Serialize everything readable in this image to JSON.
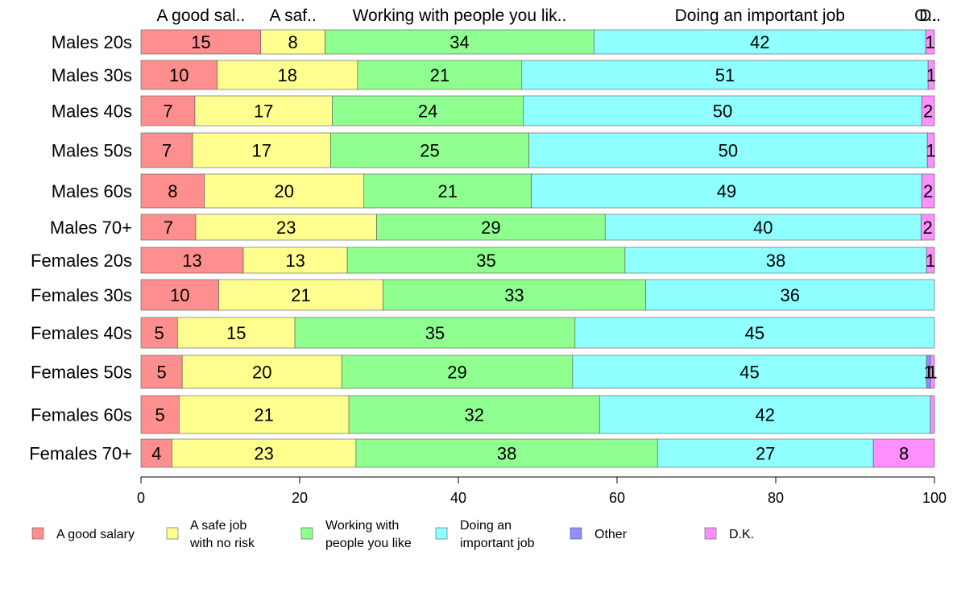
{
  "chart_data": {
    "type": "bar",
    "orientation": "horizontal",
    "stacked": true,
    "top_labels": [
      "A good sal..",
      "A saf..",
      "Working with people you lik..",
      "Doing an important job",
      "O..",
      "D.."
    ],
    "categories": [
      "Males 20s",
      "Males 30s",
      "Males 40s",
      "Males 50s",
      "Males 60s",
      "Males 70+",
      "Females 20s",
      "Females 30s",
      "Females 40s",
      "Females 50s",
      "Females 60s",
      "Females 70+"
    ],
    "series": [
      {
        "name": "A good salary",
        "legend_lines": [
          "A good salary"
        ],
        "color": "#ff8f8f",
        "values": [
          15.1,
          9.6,
          6.8,
          6.5,
          8.0,
          6.9,
          12.9,
          9.8,
          4.6,
          5.2,
          4.8,
          3.9
        ],
        "labels": [
          "15",
          "10",
          "7",
          "7",
          "8",
          "7",
          "13",
          "10",
          "5",
          "5",
          "5",
          "4"
        ]
      },
      {
        "name": "A safe job with no risk",
        "legend_lines": [
          "A safe job",
          "with no risk"
        ],
        "color": "#ffff8f",
        "values": [
          8.1,
          17.7,
          17.3,
          17.4,
          20.1,
          22.8,
          13.1,
          20.7,
          14.8,
          20.1,
          21.4,
          23.2
        ],
        "labels": [
          "8",
          "18",
          "17",
          "17",
          "20",
          "23",
          "13",
          "21",
          "15",
          "20",
          "21",
          "23"
        ]
      },
      {
        "name": "Working with people you like",
        "legend_lines": [
          "Working with",
          "people you like"
        ],
        "color": "#8fff8f",
        "values": [
          33.9,
          20.7,
          24.1,
          25.0,
          21.1,
          28.8,
          35.0,
          33.1,
          35.3,
          29.1,
          31.6,
          38.0
        ],
        "labels": [
          "34",
          "21",
          "24",
          "25",
          "21",
          "29",
          "35",
          "33",
          "35",
          "29",
          "32",
          "38"
        ]
      },
      {
        "name": "Doing an important job",
        "legend_lines": [
          "Doing an",
          "important job"
        ],
        "color": "#8fffff",
        "values": [
          41.8,
          51.2,
          50.2,
          50.2,
          49.2,
          39.8,
          38.0,
          36.4,
          45.3,
          44.6,
          41.7,
          27.2
        ],
        "labels": [
          "42",
          "51",
          "50",
          "50",
          "49",
          "40",
          "38",
          "36",
          "45",
          "45",
          "42",
          "27"
        ]
      },
      {
        "name": "Other",
        "legend_lines": [
          "Other"
        ],
        "color": "#8f8fff",
        "values": [
          0,
          0,
          0,
          0,
          0,
          0,
          0,
          0,
          0,
          0.5,
          0,
          0
        ],
        "labels": [
          "",
          "",
          "",
          "",
          "",
          "",
          "",
          "",
          "",
          "1",
          "",
          ""
        ]
      },
      {
        "name": "D.K.",
        "legend_lines": [
          "D.K."
        ],
        "color": "#ff8fff",
        "values": [
          1.1,
          0.8,
          1.6,
          0.9,
          1.6,
          1.7,
          1.0,
          0,
          0,
          0.5,
          0.5,
          7.7
        ],
        "labels": [
          "1",
          "1",
          "2",
          "1",
          "2",
          "2",
          "1",
          "",
          "",
          "1",
          "",
          "8"
        ]
      }
    ],
    "xlim": [
      0,
      100
    ],
    "xticks": [
      "0",
      "20",
      "40",
      "60",
      "80",
      "100"
    ],
    "xlabel": "",
    "ylabel": "",
    "grid": false,
    "legend_position": "bottom"
  }
}
